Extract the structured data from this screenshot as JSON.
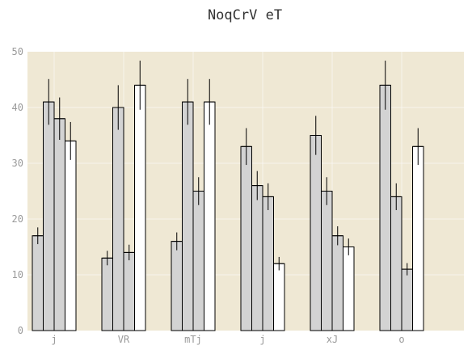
{
  "chart_data": {
    "type": "bar",
    "title": "NoqCrV eT",
    "xlabel": "",
    "ylabel": "",
    "categories": [
      "j",
      "VR",
      "mTj",
      "j",
      "xJ",
      "o"
    ],
    "ylim": [
      0,
      50
    ],
    "yticks": [
      0,
      10,
      20,
      30,
      40,
      50
    ],
    "grid": true,
    "legend": "none",
    "background_color": "#efe8d4",
    "series": [
      {
        "color": "#d3d3d3",
        "values": [
          17,
          13,
          16,
          33,
          35,
          44
        ],
        "errors": [
          1.5,
          1.3,
          1.6,
          3.3,
          3.5,
          4.4
        ]
      },
      {
        "color": "#d3d3d3",
        "values": [
          41,
          40,
          41,
          26,
          25,
          24
        ],
        "errors": [
          4.1,
          4.0,
          4.1,
          2.6,
          2.5,
          2.4
        ]
      },
      {
        "color": "#d3d3d3",
        "values": [
          38,
          14,
          25,
          24,
          17,
          11
        ],
        "errors": [
          3.8,
          1.4,
          2.5,
          2.4,
          1.7,
          1.1
        ]
      },
      {
        "color": "#ffffff",
        "values": [
          34,
          44,
          41,
          12,
          15,
          33
        ],
        "errors": [
          3.4,
          4.4,
          4.1,
          1.2,
          1.5,
          3.3
        ]
      }
    ]
  }
}
